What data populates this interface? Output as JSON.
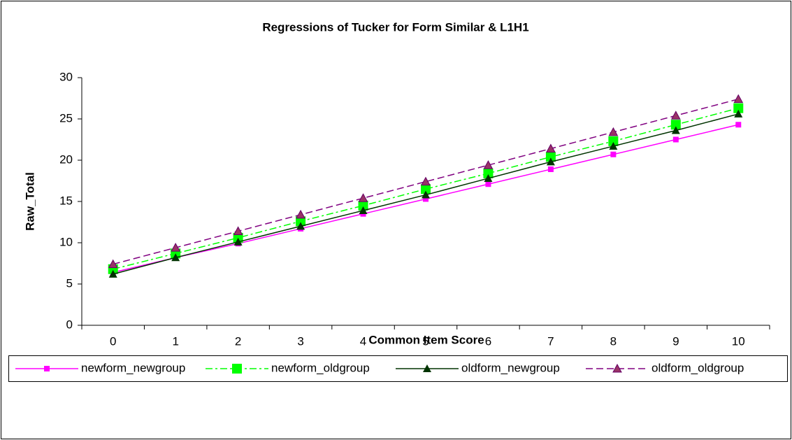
{
  "chart_data": {
    "type": "line",
    "title": "Regressions of Tucker for Form Similar & L1H1",
    "x_label": "Common Item Score",
    "y_label": "Raw_Total",
    "categories": [
      "0",
      "1",
      "2",
      "3",
      "4",
      "5",
      "6",
      "7",
      "8",
      "9",
      "10"
    ],
    "ylim": [
      0,
      30
    ],
    "yticks": [
      0,
      5,
      10,
      15,
      20,
      25,
      30
    ],
    "legend": "bottom",
    "series": [
      {
        "name": "newform_newgroup",
        "color": "#ff00ff",
        "dash": "solid",
        "marker": "square",
        "values": [
          6.4,
          8.2,
          9.9,
          11.7,
          13.5,
          15.3,
          17.1,
          18.9,
          20.7,
          22.5,
          24.3
        ]
      },
      {
        "name": "newform_oldgroup",
        "color": "#00ff00",
        "dash": "dashdot",
        "marker": "bigsquare",
        "values": [
          6.8,
          8.7,
          10.6,
          12.6,
          14.5,
          16.5,
          18.4,
          20.4,
          22.3,
          24.3,
          26.3
        ]
      },
      {
        "name": "oldform_newgroup",
        "color": "#003300",
        "dash": "solid",
        "marker": "triangle",
        "values": [
          6.2,
          8.2,
          10.1,
          12.0,
          13.9,
          15.8,
          17.8,
          19.8,
          21.7,
          23.6,
          25.6
        ]
      },
      {
        "name": "oldform_oldgroup",
        "color": "#800080",
        "dash": "dash",
        "marker": "triangle",
        "values": [
          7.4,
          9.4,
          11.4,
          13.4,
          15.4,
          17.4,
          19.4,
          21.4,
          23.4,
          25.4,
          27.4
        ]
      }
    ]
  }
}
